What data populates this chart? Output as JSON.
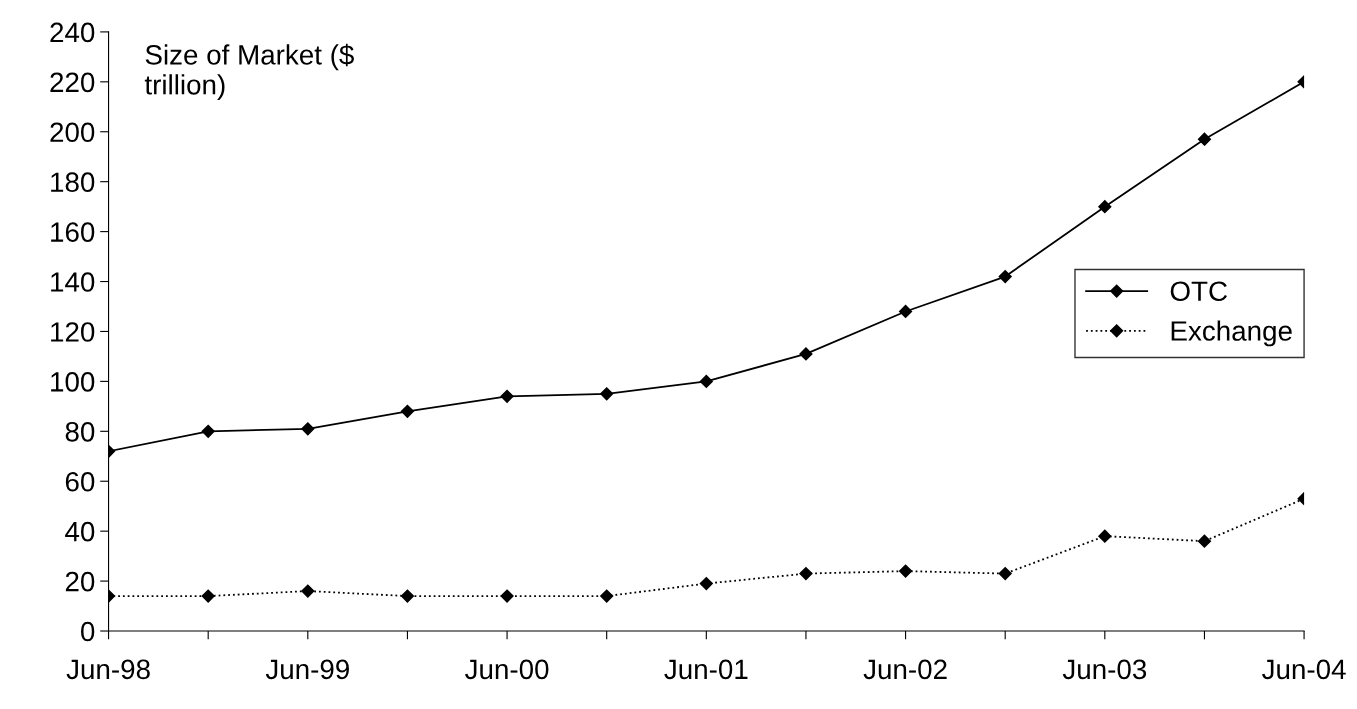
{
  "chart_data": {
    "type": "line",
    "categories": [
      "Jun-98",
      null,
      "Jun-99",
      null,
      "Jun-00",
      null,
      "Jun-01",
      null,
      "Jun-02",
      null,
      "Jun-03",
      null,
      "Jun-04"
    ],
    "series": [
      {
        "name": "OTC",
        "color": "#000000",
        "line_style": "solid",
        "values": [
          72,
          80,
          81,
          88,
          94,
          95,
          100,
          111,
          128,
          142,
          170,
          197,
          220
        ]
      },
      {
        "name": "Exchange",
        "color": "#000000",
        "line_style": "dotted",
        "values": [
          14,
          14,
          16,
          14,
          14,
          14,
          19,
          23,
          24,
          23,
          38,
          36,
          53
        ]
      }
    ],
    "ylim": [
      0,
      240
    ],
    "yticks": [
      0,
      20,
      40,
      60,
      80,
      100,
      120,
      140,
      160,
      180,
      200,
      220,
      240
    ],
    "annotations": [
      "Size of Market ($\ntrillion)"
    ],
    "marker": "diamond",
    "legend": "right",
    "grid": false
  }
}
